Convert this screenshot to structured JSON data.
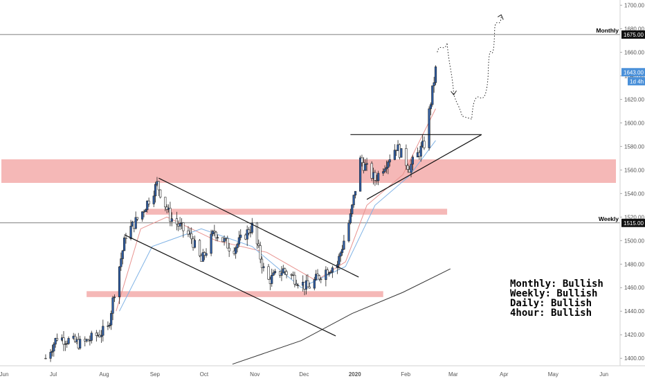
{
  "chart_data": {
    "type": "candlestick",
    "x_ticks": [
      "Jun",
      "Jul",
      "Aug",
      "Sep",
      "Oct",
      "Nov",
      "Dec",
      "2020",
      "Feb",
      "Mar",
      "Apr",
      "May",
      "Jun"
    ],
    "y_ticks": [
      1400,
      1420,
      1440,
      1460,
      1480,
      1500,
      1520,
      1540,
      1560,
      1580,
      1600,
      1620,
      1640,
      1660,
      1680,
      1700
    ],
    "y_tick_labels": [
      "1400.00",
      "1420.00",
      "1440.00",
      "1460.00",
      "1480.00",
      "1500.00",
      "1520.00",
      "1540.00",
      "1560.00",
      "1580.00",
      "1600.00",
      "1620.00",
      "1640.00",
      "1660.00",
      "1680.00",
      "1700.00"
    ],
    "ylim": [
      1396,
      1702
    ],
    "xlim": [
      "2019-06-01",
      "2020-06-10"
    ],
    "candle_keypoints": [
      {
        "date": "2019-06-28",
        "price": 1400
      },
      {
        "date": "2019-07-05",
        "price": 1418
      },
      {
        "date": "2019-07-20",
        "price": 1412
      },
      {
        "date": "2019-08-05",
        "price": 1425
      },
      {
        "date": "2019-08-10",
        "price": 1465
      },
      {
        "date": "2019-08-16",
        "price": 1505
      },
      {
        "date": "2019-08-25",
        "price": 1522
      },
      {
        "date": "2019-09-04",
        "price": 1548
      },
      {
        "date": "2019-09-12",
        "price": 1520
      },
      {
        "date": "2019-09-25",
        "price": 1502
      },
      {
        "date": "2019-10-01",
        "price": 1482
      },
      {
        "date": "2019-10-09",
        "price": 1508
      },
      {
        "date": "2019-10-20",
        "price": 1492
      },
      {
        "date": "2019-11-01",
        "price": 1512
      },
      {
        "date": "2019-11-10",
        "price": 1465
      },
      {
        "date": "2019-11-20",
        "price": 1475
      },
      {
        "date": "2019-12-05",
        "price": 1460
      },
      {
        "date": "2019-12-15",
        "price": 1474
      },
      {
        "date": "2019-12-23",
        "price": 1480
      },
      {
        "date": "2019-12-31",
        "price": 1520
      },
      {
        "date": "2020-01-06",
        "price": 1568
      },
      {
        "date": "2020-01-15",
        "price": 1552
      },
      {
        "date": "2020-01-28",
        "price": 1580
      },
      {
        "date": "2020-02-05",
        "price": 1562
      },
      {
        "date": "2020-02-14",
        "price": 1582
      },
      {
        "date": "2020-02-21",
        "price": 1645
      }
    ],
    "moving_averages": [
      {
        "name": "",
        "color": "#e8928f",
        "points": [
          {
            "date": "2019-08-10",
            "price": 1440
          },
          {
            "date": "2019-08-25",
            "price": 1510
          },
          {
            "date": "2019-09-10",
            "price": 1520
          },
          {
            "date": "2019-10-10",
            "price": 1500
          },
          {
            "date": "2019-11-10",
            "price": 1490
          },
          {
            "date": "2019-12-10",
            "price": 1466
          },
          {
            "date": "2019-12-28",
            "price": 1482
          },
          {
            "date": "2020-01-10",
            "price": 1530
          },
          {
            "date": "2020-02-01",
            "price": 1556
          },
          {
            "date": "2020-02-21",
            "price": 1612
          }
        ]
      },
      {
        "name": "",
        "color": "#7fb2e5",
        "points": [
          {
            "date": "2019-08-12",
            "price": 1440
          },
          {
            "date": "2019-09-01",
            "price": 1495
          },
          {
            "date": "2019-10-01",
            "price": 1510
          },
          {
            "date": "2019-11-01",
            "price": 1495
          },
          {
            "date": "2019-12-01",
            "price": 1460
          },
          {
            "date": "2019-12-28",
            "price": 1478
          },
          {
            "date": "2020-01-15",
            "price": 1530
          },
          {
            "date": "2020-02-05",
            "price": 1555
          },
          {
            "date": "2020-02-21",
            "price": 1585
          }
        ]
      },
      {
        "name": "",
        "color": "#333333",
        "points": [
          {
            "date": "2019-10-20",
            "price": 1395
          },
          {
            "date": "2019-12-01",
            "price": 1415
          },
          {
            "date": "2020-01-01",
            "price": 1438
          },
          {
            "date": "2020-02-01",
            "price": 1456
          },
          {
            "date": "2020-03-01",
            "price": 1476
          }
        ]
      }
    ],
    "horizontal_levels": [
      {
        "label": "Monthly",
        "price": 1675,
        "price_label": "1675.00"
      },
      {
        "label": "Weekly",
        "price": 1515,
        "price_label": "1515.00"
      }
    ],
    "current_price": {
      "label": "1643.00",
      "countdown": "1d 4h",
      "color": "#4a90d9"
    },
    "zones": [
      {
        "from_date": "2019-06-01",
        "to_date": "2020-06-10",
        "low": 1549,
        "high": 1569
      },
      {
        "from_date": "2019-08-28",
        "to_date": "2020-02-28",
        "low": 1522,
        "high": 1527
      },
      {
        "from_date": "2019-07-23",
        "to_date": "2020-01-20",
        "low": 1452,
        "high": 1457
      }
    ],
    "drawings": [
      {
        "kind": "channel-upper",
        "from": {
          "date": "2019-09-05",
          "price": 1553
        },
        "to": {
          "date": "2020-01-05",
          "price": 1469
        }
      },
      {
        "kind": "channel-lower",
        "from": {
          "date": "2019-08-15",
          "price": 1505
        },
        "to": {
          "date": "2019-12-22",
          "price": 1419
        }
      },
      {
        "kind": "triangle-top",
        "from": {
          "date": "2019-12-31",
          "price": 1590
        },
        "to": {
          "date": "2020-03-20",
          "price": 1590
        }
      },
      {
        "kind": "triangle-bottom",
        "from": {
          "date": "2020-01-10",
          "price": 1535
        },
        "to": {
          "date": "2020-03-20",
          "price": 1590
        }
      }
    ],
    "projection_path": [
      {
        "date": "2020-02-22",
        "price": 1660
      },
      {
        "date": "2020-02-28",
        "price": 1668
      },
      {
        "date": "2020-03-03",
        "price": 1625
      },
      {
        "date": "2020-03-08",
        "price": 1606
      },
      {
        "date": "2020-03-14",
        "price": 1603
      },
      {
        "date": "2020-03-24",
        "price": 1640
      },
      {
        "date": "2020-03-28",
        "price": 1680
      },
      {
        "date": "2020-04-01",
        "price": 1690
      }
    ],
    "annotations": [
      "Monthly: Bullish",
      "Weekly: Bullish",
      "Daily: Bullish",
      "4hour: Bullish"
    ],
    "grid": false,
    "colors": {
      "up": "#2f5fa8",
      "down": "#ffffff",
      "zone": "#f19a98"
    }
  }
}
